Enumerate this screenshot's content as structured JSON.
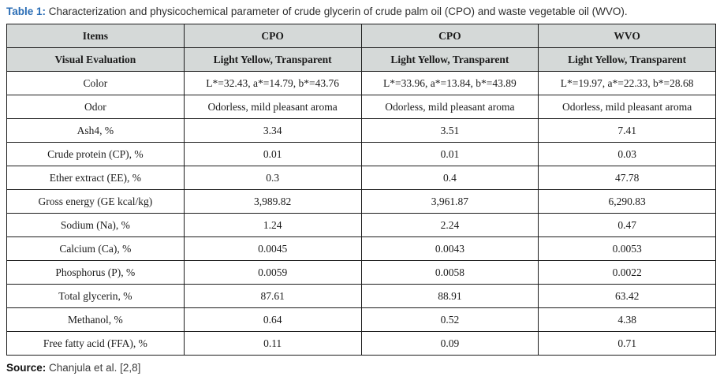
{
  "caption": {
    "label": "Table 1:",
    "text": " Characterization and physicochemical parameter of crude glycerin of crude palm oil (CPO) and waste vegetable oil (WVO)."
  },
  "table": {
    "columns": [
      "Items",
      "CPO",
      "CPO",
      "WVO"
    ],
    "rows": [
      {
        "header": true,
        "item": "Visual Evaluation",
        "values": [
          "Light Yellow, Transparent",
          "Light Yellow, Transparent",
          "Light Yellow, Transparent"
        ]
      },
      {
        "header": false,
        "item": "Color",
        "values": [
          "L*=32.43, a*=14.79, b*=43.76",
          "L*=33.96, a*=13.84, b*=43.89",
          "L*=19.97, a*=22.33, b*=28.68"
        ]
      },
      {
        "header": false,
        "item": "Odor",
        "values": [
          "Odorless, mild pleasant aroma",
          "Odorless, mild pleasant aroma",
          "Odorless, mild pleasant aroma"
        ]
      },
      {
        "header": false,
        "item": "Ash4, %",
        "values": [
          "3.34",
          "3.51",
          "7.41"
        ]
      },
      {
        "header": false,
        "item": "Crude protein (CP), %",
        "values": [
          "0.01",
          "0.01",
          "0.03"
        ]
      },
      {
        "header": false,
        "item": "Ether extract (EE), %",
        "values": [
          "0.3",
          "0.4",
          "47.78"
        ]
      },
      {
        "header": false,
        "item": "Gross energy (GE kcal/kg)",
        "values": [
          "3,989.82",
          "3,961.87",
          "6,290.83"
        ]
      },
      {
        "header": false,
        "item": "Sodium (Na), %",
        "values": [
          "1.24",
          "2.24",
          "0.47"
        ]
      },
      {
        "header": false,
        "item": "Calcium (Ca), %",
        "values": [
          "0.0045",
          "0.0043",
          "0.0053"
        ]
      },
      {
        "header": false,
        "item": "Phosphorus (P), %",
        "values": [
          "0.0059",
          "0.0058",
          "0.0022"
        ]
      },
      {
        "header": false,
        "item": "Total glycerin, %",
        "values": [
          "87.61",
          "88.91",
          "63.42"
        ]
      },
      {
        "header": false,
        "item": "Methanol, %",
        "values": [
          "0.64",
          "0.52",
          "4.38"
        ]
      },
      {
        "header": false,
        "item": "Free fatty acid (FFA), %",
        "values": [
          "0.11",
          "0.09",
          "0.71"
        ]
      }
    ]
  },
  "source": {
    "label": "Source:",
    "text": " Chanjula et al. [2,8]"
  },
  "colors": {
    "title_accent": "#2a6db5",
    "header_bg": "#d5d9d8",
    "border": "#1c1c1c",
    "text": "#1b1b1b"
  }
}
